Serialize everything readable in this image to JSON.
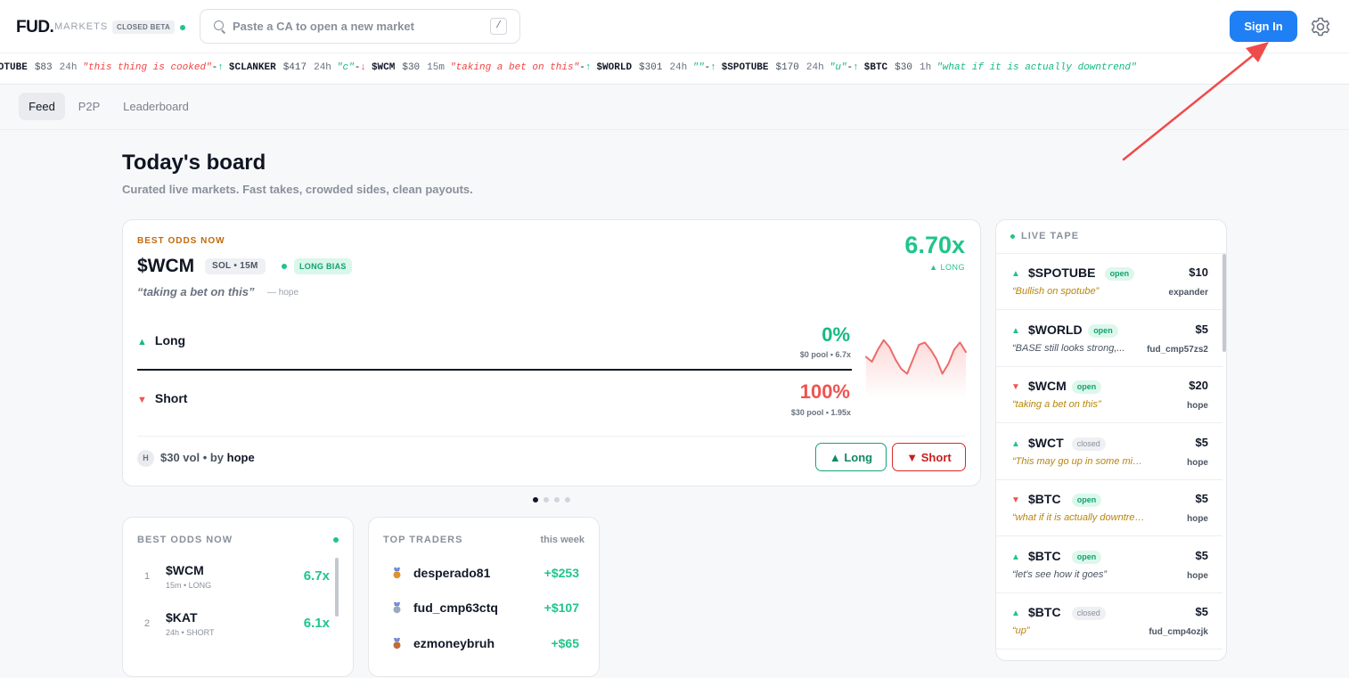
{
  "header": {
    "logo": "FUD.",
    "logo_sub": "MARKETS",
    "beta_badge": "CLOSED BETA",
    "search_placeholder": "Paste a CA to open a new market",
    "search_shortcut": "/",
    "signin_label": "Sign In"
  },
  "ticker": [
    {
      "dir": "down",
      "arrow": "↓",
      "symbol": "$SPOTUBE",
      "amount": "$83",
      "duration": "24h",
      "quote": "\"this thing is cooked\""
    },
    {
      "dir": "up",
      "arrow": "↑",
      "symbol": "$CLANKER",
      "amount": "$417",
      "duration": "24h",
      "quote": "\"c\""
    },
    {
      "dir": "down",
      "arrow": "↓",
      "symbol": "$WCM",
      "amount": "$30",
      "duration": "15m",
      "quote": "\"taking a bet on this\""
    },
    {
      "dir": "up",
      "arrow": "↑",
      "symbol": "$WORLD",
      "amount": "$301",
      "duration": "24h",
      "quote": "\"\""
    },
    {
      "dir": "up",
      "arrow": "↑",
      "symbol": "$SPOTUBE",
      "amount": "$170",
      "duration": "24h",
      "quote": "\"u\""
    },
    {
      "dir": "up",
      "arrow": "↑",
      "symbol": "$BTC",
      "amount": "$30",
      "duration": "1h",
      "quote": "\"what if it is actually downtrend\""
    }
  ],
  "tabs": [
    "Feed",
    "P2P",
    "Leaderboard"
  ],
  "board": {
    "title": "Today's board",
    "subtitle": "Curated live markets. Fast takes, crowded sides, clean payouts."
  },
  "featured": {
    "kicker": "BEST ODDS NOW",
    "symbol": "$WCM",
    "chain_chip": "SOL • 15M",
    "bias_chip": "LONG BIAS",
    "quote": "“taking a bet on this”",
    "quote_by": "— hope",
    "multiplier": "6.70x",
    "multiplier_side": "▲ LONG",
    "long": {
      "label": "Long",
      "pct": "0%",
      "pool": "$0 pool • 6.7x"
    },
    "short": {
      "label": "Short",
      "pct": "100%",
      "pool": "$30 pool • 1.95x"
    },
    "avatar": "H",
    "volume": "$30 vol • by",
    "author": "hope",
    "long_button": "▲ Long",
    "short_button": "▼ Short",
    "sparkline": [
      0.6,
      0.5,
      0.75,
      0.95,
      0.8,
      0.55,
      0.35,
      0.25,
      0.55,
      0.85,
      0.9,
      0.75,
      0.55,
      0.25,
      0.45,
      0.75,
      0.9,
      0.7
    ]
  },
  "best_odds": {
    "title": "BEST ODDS NOW",
    "rows": [
      {
        "rank": "1",
        "symbol": "$WCM",
        "meta": "15m • LONG",
        "mult": "6.7x"
      },
      {
        "rank": "2",
        "symbol": "$KAT",
        "meta": "24h • SHORT",
        "mult": "6.1x"
      }
    ]
  },
  "top_traders": {
    "title": "TOP TRADERS",
    "period": "this week",
    "rows": [
      {
        "name": "desperado81",
        "pnl": "+$253",
        "medal": "#e0912b"
      },
      {
        "name": "fud_cmp63ctq",
        "pnl": "+$107",
        "medal": "#9aa8c0"
      },
      {
        "name": "ezmoneybruh",
        "pnl": "+$65",
        "medal": "#c06b3a"
      }
    ]
  },
  "live_tape": {
    "title": "LIVE TAPE",
    "rows": [
      {
        "dir": "up",
        "symbol": "$SPOTUBE",
        "status": "open",
        "amount": "$10",
        "quote": "“Bullish on spotube”",
        "quote_color": "gold",
        "user": "expander"
      },
      {
        "dir": "up",
        "symbol": "$WORLD",
        "status": "open",
        "amount": "$5",
        "quote": "“BASE still looks strong,...",
        "quote_color": "grey",
        "user": "fud_cmp57zs2"
      },
      {
        "dir": "down",
        "symbol": "$WCM",
        "status": "open",
        "amount": "$20",
        "quote": "“taking a bet on this”",
        "quote_color": "gold",
        "user": "hope"
      },
      {
        "dir": "up",
        "symbol": "$WCT",
        "status": "closed",
        "amount": "$5",
        "quote": "“This may go up in some mins......",
        "quote_color": "gold",
        "user": "hope"
      },
      {
        "dir": "down",
        "symbol": "$BTC",
        "status": "open",
        "amount": "$5",
        "quote": "“what if it is actually downtrend...”",
        "quote_color": "gold",
        "user": "hope"
      },
      {
        "dir": "up",
        "symbol": "$BTC",
        "status": "open",
        "amount": "$5",
        "quote": "“let's see how it goes”",
        "quote_color": "grey",
        "user": "hope"
      },
      {
        "dir": "up",
        "symbol": "$BTC",
        "status": "closed",
        "amount": "$5",
        "quote": "“up”",
        "quote_color": "gold",
        "user": "fud_cmp4ozjk"
      }
    ]
  },
  "colors": {
    "accent_blue": "#1f7ff5",
    "green": "#1fc58a",
    "red": "#ef5350",
    "annotation_arrow": "#ef4b4b"
  },
  "icons": {
    "search": "search-icon",
    "settings": "gear-icon"
  }
}
